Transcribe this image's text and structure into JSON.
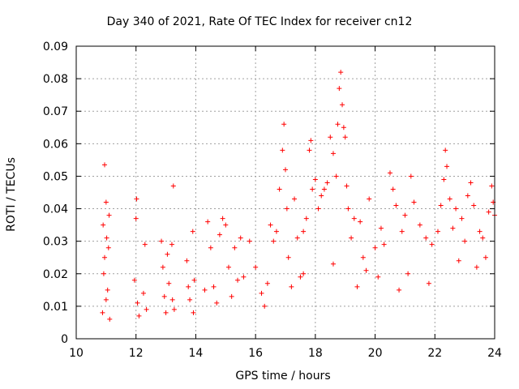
{
  "chart_data": {
    "type": "scatter",
    "title": "Day 340 of 2021, Rate Of TEC Index for receiver cn12",
    "xlabel": "GPS time / hours",
    "ylabel": "ROTI / TECUs",
    "xlim": [
      10,
      24
    ],
    "ylim": [
      0,
      0.09
    ],
    "xticks": [
      "10",
      "12",
      "14",
      "16",
      "18",
      "20",
      "22",
      "24"
    ],
    "yticks": [
      "0",
      "0.01",
      "0.02",
      "0.03",
      "0.04",
      "0.05",
      "0.06",
      "0.07",
      "0.08",
      "0.09"
    ],
    "grid": true,
    "marker": "+",
    "color": "#ff0000",
    "series": [
      {
        "name": "ROTI",
        "points": [
          [
            10.95,
            0.0535
          ],
          [
            11.0,
            0.042
          ],
          [
            10.9,
            0.035
          ],
          [
            11.1,
            0.038
          ],
          [
            10.95,
            0.025
          ],
          [
            11.05,
            0.015
          ],
          [
            10.88,
            0.008
          ],
          [
            11.12,
            0.006
          ],
          [
            11.0,
            0.012
          ],
          [
            10.92,
            0.02
          ],
          [
            11.08,
            0.028
          ],
          [
            11.02,
            0.031
          ],
          [
            12.02,
            0.043
          ],
          [
            12.0,
            0.037
          ],
          [
            11.95,
            0.018
          ],
          [
            12.05,
            0.011
          ],
          [
            12.1,
            0.007
          ],
          [
            12.3,
            0.029
          ],
          [
            12.25,
            0.014
          ],
          [
            12.35,
            0.009
          ],
          [
            12.85,
            0.03
          ],
          [
            12.9,
            0.022
          ],
          [
            12.95,
            0.013
          ],
          [
            13.0,
            0.008
          ],
          [
            13.05,
            0.026
          ],
          [
            13.1,
            0.017
          ],
          [
            13.25,
            0.047
          ],
          [
            13.2,
            0.029
          ],
          [
            13.22,
            0.012
          ],
          [
            13.28,
            0.009
          ],
          [
            13.7,
            0.024
          ],
          [
            13.75,
            0.016
          ],
          [
            13.8,
            0.012
          ],
          [
            13.9,
            0.033
          ],
          [
            13.95,
            0.018
          ],
          [
            13.92,
            0.008
          ],
          [
            14.4,
            0.036
          ],
          [
            14.5,
            0.028
          ],
          [
            14.6,
            0.016
          ],
          [
            14.7,
            0.011
          ],
          [
            14.8,
            0.032
          ],
          [
            14.9,
            0.037
          ],
          [
            15.0,
            0.035
          ],
          [
            15.1,
            0.022
          ],
          [
            15.2,
            0.013
          ],
          [
            15.3,
            0.028
          ],
          [
            15.5,
            0.031
          ],
          [
            15.6,
            0.019
          ],
          [
            15.8,
            0.03
          ],
          [
            16.0,
            0.022
          ],
          [
            16.2,
            0.014
          ],
          [
            16.3,
            0.01
          ],
          [
            16.5,
            0.035
          ],
          [
            16.6,
            0.03
          ],
          [
            16.7,
            0.033
          ],
          [
            16.8,
            0.046
          ],
          [
            16.9,
            0.058
          ],
          [
            16.95,
            0.066
          ],
          [
            17.0,
            0.052
          ],
          [
            17.05,
            0.04
          ],
          [
            17.1,
            0.025
          ],
          [
            17.2,
            0.016
          ],
          [
            17.3,
            0.043
          ],
          [
            17.4,
            0.031
          ],
          [
            17.5,
            0.019
          ],
          [
            17.6,
            0.033
          ],
          [
            17.7,
            0.037
          ],
          [
            17.8,
            0.058
          ],
          [
            17.85,
            0.061
          ],
          [
            17.9,
            0.046
          ],
          [
            18.0,
            0.049
          ],
          [
            18.1,
            0.04
          ],
          [
            18.2,
            0.044
          ],
          [
            18.3,
            0.046
          ],
          [
            18.4,
            0.048
          ],
          [
            18.5,
            0.062
          ],
          [
            18.6,
            0.057
          ],
          [
            18.7,
            0.05
          ],
          [
            18.75,
            0.066
          ],
          [
            18.8,
            0.077
          ],
          [
            18.85,
            0.082
          ],
          [
            18.9,
            0.072
          ],
          [
            18.95,
            0.065
          ],
          [
            19.0,
            0.062
          ],
          [
            19.05,
            0.047
          ],
          [
            19.1,
            0.04
          ],
          [
            19.2,
            0.031
          ],
          [
            19.3,
            0.037
          ],
          [
            19.5,
            0.036
          ],
          [
            19.6,
            0.025
          ],
          [
            19.8,
            0.043
          ],
          [
            20.0,
            0.028
          ],
          [
            20.2,
            0.034
          ],
          [
            20.3,
            0.029
          ],
          [
            20.5,
            0.051
          ],
          [
            20.6,
            0.046
          ],
          [
            20.7,
            0.041
          ],
          [
            20.9,
            0.033
          ],
          [
            21.0,
            0.038
          ],
          [
            21.2,
            0.05
          ],
          [
            21.3,
            0.042
          ],
          [
            21.5,
            0.035
          ],
          [
            21.7,
            0.031
          ],
          [
            21.9,
            0.029
          ],
          [
            22.1,
            0.033
          ],
          [
            22.2,
            0.041
          ],
          [
            22.3,
            0.049
          ],
          [
            22.35,
            0.058
          ],
          [
            22.4,
            0.053
          ],
          [
            22.5,
            0.043
          ],
          [
            22.6,
            0.034
          ],
          [
            22.7,
            0.04
          ],
          [
            22.9,
            0.037
          ],
          [
            23.0,
            0.03
          ],
          [
            23.1,
            0.044
          ],
          [
            23.2,
            0.048
          ],
          [
            23.3,
            0.041
          ],
          [
            23.5,
            0.033
          ],
          [
            23.6,
            0.031
          ],
          [
            23.8,
            0.039
          ],
          [
            23.9,
            0.047
          ],
          [
            23.95,
            0.042
          ],
          [
            24.0,
            0.038
          ],
          [
            23.7,
            0.025
          ],
          [
            23.4,
            0.022
          ],
          [
            22.8,
            0.024
          ],
          [
            21.8,
            0.017
          ],
          [
            21.1,
            0.02
          ],
          [
            20.8,
            0.015
          ],
          [
            20.1,
            0.019
          ],
          [
            19.7,
            0.021
          ],
          [
            19.4,
            0.016
          ],
          [
            18.6,
            0.023
          ],
          [
            17.6,
            0.02
          ],
          [
            16.4,
            0.017
          ],
          [
            15.4,
            0.018
          ],
          [
            14.3,
            0.015
          ]
        ]
      }
    ]
  }
}
